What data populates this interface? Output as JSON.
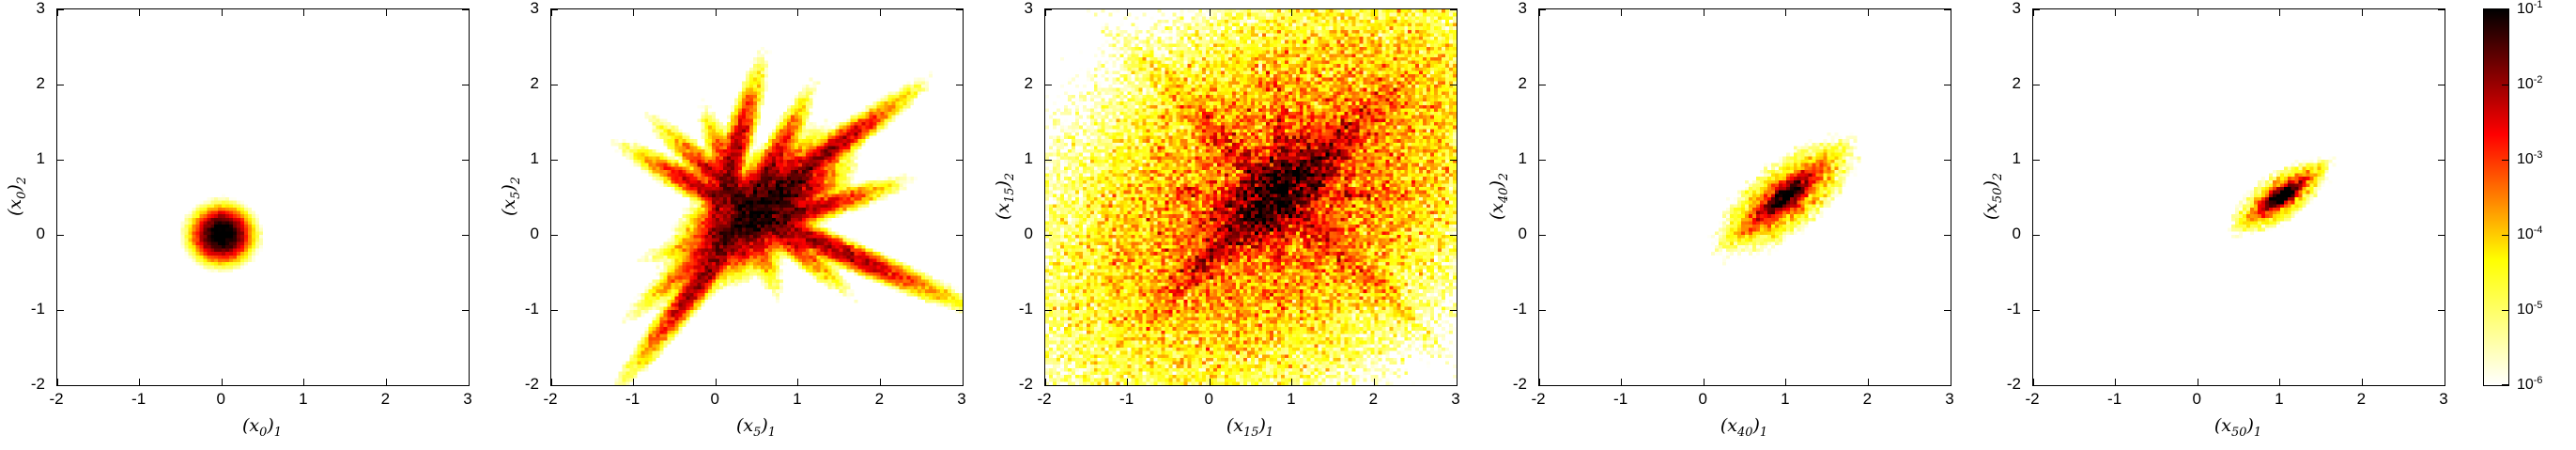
{
  "figure": {
    "background": "#ffffff",
    "frame_color": "#000000",
    "description": "Row of five MATLAB-style 2-D log-density histograms showing a particle distribution at iterations 0, 5, 15, 40 and 50, sharing one hot-reversed log colorbar."
  },
  "colorbar": {
    "scale": "log10",
    "tick_label_base": "10",
    "tick_exponents": [
      -1,
      -2,
      -3,
      -4,
      -5,
      -6
    ],
    "colormap": "hot-reversed",
    "gradient_stops": [
      "#000000",
      "#ff0000",
      "#ffff00",
      "#ffffff"
    ],
    "domain_log10": [
      -6,
      -1
    ]
  },
  "chart_data": [
    {
      "type": "heatmap",
      "xlabel": "(x_0)_1",
      "ylabel": "(x_0)_2",
      "xlim": [
        -2,
        3
      ],
      "ylim": [
        -2,
        3
      ],
      "xticks": [
        -2,
        -1,
        0,
        1,
        2,
        3
      ],
      "yticks": [
        -2,
        -1,
        0,
        1,
        2,
        3
      ],
      "bins": 110,
      "noise": 0.3,
      "seed": 11,
      "peak": [
        0,
        0
      ],
      "pattern": "isotropic round blob centered at origin",
      "features": [
        {
          "x": 0.0,
          "y": 0.0,
          "angle": 0,
          "sx": 0.095,
          "sy": 0.095,
          "amp": 0.2
        },
        {
          "x": 0.0,
          "y": 0.0,
          "angle": 0,
          "sx": 0.13,
          "sy": 0.13,
          "amp": 0.002
        }
      ]
    },
    {
      "type": "heatmap",
      "xlabel": "(x_5)_1",
      "ylabel": "(x_5)_2",
      "xlim": [
        -2,
        3
      ],
      "ylim": [
        -2,
        3
      ],
      "xticks": [
        -2,
        -1,
        0,
        1,
        2,
        3
      ],
      "yticks": [
        -2,
        -1,
        0,
        1,
        2,
        3
      ],
      "bins": 110,
      "noise": 0.6,
      "seed": 22,
      "peak": [
        0.55,
        0.33
      ],
      "pattern": "star / X shaped set of streaks crossing near (0.5,0.3)",
      "features": [
        {
          "x": 0.55,
          "y": 0.33,
          "angle": 42,
          "sx": 0.32,
          "sy": 0.15,
          "amp": 0.06
        },
        {
          "x": 0.55,
          "y": 0.35,
          "angle": 42,
          "sx": 0.5,
          "sy": 0.055,
          "amp": 0.022
        },
        {
          "x": 0.42,
          "y": 0.38,
          "angle": 136,
          "sx": 0.4,
          "sy": 0.05,
          "amp": 0.018
        },
        {
          "x": 0.5,
          "y": 0.55,
          "angle": 65,
          "sx": 0.38,
          "sy": 0.05,
          "amp": 0.016
        },
        {
          "x": 0.3,
          "y": 0.45,
          "angle": 110,
          "sx": 0.32,
          "sy": 0.05,
          "amp": 0.013
        },
        {
          "x": 0.75,
          "y": 0.2,
          "angle": 18,
          "sx": 0.4,
          "sy": 0.05,
          "amp": 0.014
        },
        {
          "x": 0.0,
          "y": -0.35,
          "angle": 55,
          "sx": 0.5,
          "sy": 0.05,
          "amp": 0.014
        },
        {
          "x": 1.25,
          "y": -0.1,
          "angle": 155,
          "sx": 0.55,
          "sy": 0.05,
          "amp": 0.012
        },
        {
          "x": 0.15,
          "y": 0.8,
          "angle": 75,
          "sx": 0.4,
          "sy": 0.05,
          "amp": 0.012
        },
        {
          "x": 1.1,
          "y": 0.9,
          "angle": 38,
          "sx": 0.45,
          "sy": 0.05,
          "amp": 0.014
        },
        {
          "x": 0.05,
          "y": 0.5,
          "angle": 150,
          "sx": 0.35,
          "sy": 0.05,
          "amp": 0.01
        }
      ]
    },
    {
      "type": "heatmap",
      "xlabel": "(x_15)_1",
      "ylabel": "(x_15)_2",
      "xlim": [
        -2,
        3
      ],
      "ylim": [
        -2,
        3
      ],
      "xticks": [
        -2,
        -1,
        0,
        1,
        2,
        3
      ],
      "yticks": [
        -2,
        -1,
        0,
        1,
        2,
        3
      ],
      "bins": 110,
      "noise": 1.25,
      "seed": 33,
      "peak": [
        0.85,
        0.55
      ],
      "pattern": "long main-diagonal ridge with fainter anti-diagonal cross and wide speckle halo",
      "features": [
        {
          "x": 0.85,
          "y": 0.55,
          "angle": 45,
          "sx": 0.3,
          "sy": 0.14,
          "amp": 0.08
        },
        {
          "x": 0.8,
          "y": 0.5,
          "angle": 45,
          "sx": 0.7,
          "sy": 0.08,
          "amp": 0.018
        },
        {
          "x": 1.15,
          "y": 0.55,
          "angle": 45,
          "sx": 0.45,
          "sy": 0.05,
          "amp": 0.007
        },
        {
          "x": 0.55,
          "y": 0.75,
          "angle": 45,
          "sx": 0.45,
          "sy": 0.05,
          "amp": 0.007
        },
        {
          "x": 0.85,
          "y": 0.55,
          "angle": 135,
          "sx": 0.38,
          "sy": 0.06,
          "amp": 0.01
        },
        {
          "x": 0.85,
          "y": 0.55,
          "angle": 133,
          "sx": 0.75,
          "sy": 0.09,
          "amp": 0.002
        },
        {
          "x": 0.95,
          "y": 0.55,
          "angle": 0,
          "sx": 0.55,
          "sy": 0.05,
          "amp": 0.0035
        },
        {
          "x": 0.85,
          "y": 0.62,
          "angle": 90,
          "sx": 0.55,
          "sy": 0.05,
          "amp": 0.0035
        },
        {
          "x": 0.85,
          "y": 0.55,
          "angle": 45,
          "sx": 1.15,
          "sy": 0.75,
          "amp": 0.0005
        }
      ]
    },
    {
      "type": "heatmap",
      "xlabel": "(x_40)_1",
      "ylabel": "(x_40)_2",
      "xlim": [
        -2,
        3
      ],
      "ylim": [
        -2,
        3
      ],
      "xticks": [
        -2,
        -1,
        0,
        1,
        2,
        3
      ],
      "yticks": [
        -2,
        -1,
        0,
        1,
        2,
        3
      ],
      "bins": 110,
      "noise": 0.85,
      "seed": 44,
      "peak": [
        1.0,
        0.52
      ],
      "pattern": "small tight diagonal ellipse near (1,0.5)",
      "features": [
        {
          "x": 1.0,
          "y": 0.52,
          "angle": 42,
          "sx": 0.13,
          "sy": 0.048,
          "amp": 0.15
        },
        {
          "x": 1.0,
          "y": 0.52,
          "angle": 42,
          "sx": 0.26,
          "sy": 0.05,
          "amp": 0.006
        },
        {
          "x": 1.0,
          "y": 0.52,
          "angle": 135,
          "sx": 0.1,
          "sy": 0.04,
          "amp": 0.004
        },
        {
          "x": 1.0,
          "y": 0.5,
          "angle": 42,
          "sx": 0.3,
          "sy": 0.13,
          "amp": 0.0006
        }
      ]
    },
    {
      "type": "heatmap",
      "xlabel": "(x_50)_1",
      "ylabel": "(x_50)_2",
      "xlim": [
        -2,
        3
      ],
      "ylim": [
        -2,
        3
      ],
      "xticks": [
        -2,
        -1,
        0,
        1,
        2,
        3
      ],
      "yticks": [
        -2,
        -1,
        0,
        1,
        2,
        3
      ],
      "bins": 110,
      "noise": 0.85,
      "seed": 55,
      "peak": [
        1.03,
        0.53
      ],
      "pattern": "smallest tight diagonal ellipse near (1,0.5)",
      "features": [
        {
          "x": 1.03,
          "y": 0.53,
          "angle": 38,
          "sx": 0.105,
          "sy": 0.038,
          "amp": 0.15
        },
        {
          "x": 1.03,
          "y": 0.53,
          "angle": 38,
          "sx": 0.19,
          "sy": 0.04,
          "amp": 0.005
        },
        {
          "x": 1.0,
          "y": 0.5,
          "angle": 38,
          "sx": 0.2,
          "sy": 0.09,
          "amp": 0.0005
        }
      ]
    }
  ]
}
